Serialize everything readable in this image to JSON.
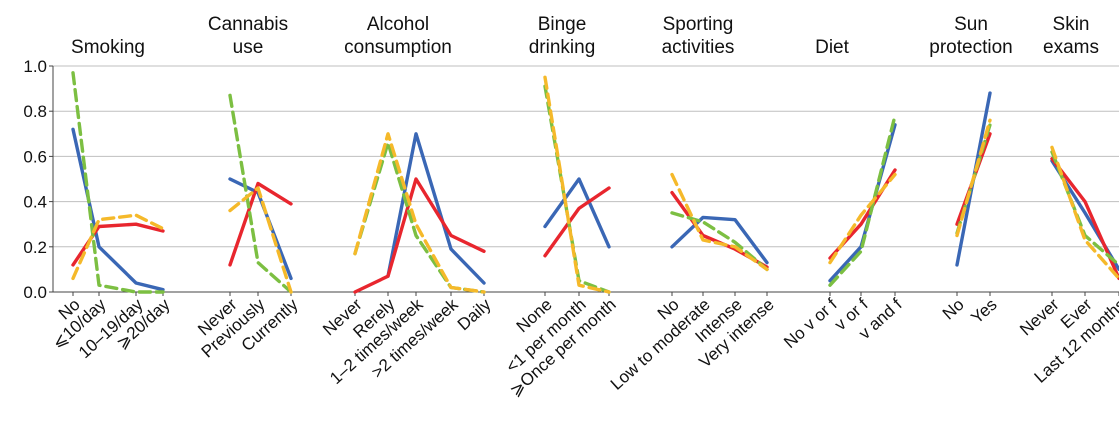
{
  "chart_data": {
    "type": "line",
    "ylim": [
      0,
      1
    ],
    "yticks": [
      "0.0",
      "0.2",
      "0.4",
      "0.6",
      "0.8",
      "1.0"
    ],
    "grid": "horizontal",
    "series_styles": [
      {
        "color": "#3a67b5",
        "dash": "solid"
      },
      {
        "color": "#e8262e",
        "dash": "solid"
      },
      {
        "color": "#7cbf42",
        "dash": "dashed"
      },
      {
        "color": "#f5b92a",
        "dash": "dashed"
      }
    ],
    "panels": [
      {
        "title": [
          "Smoking"
        ],
        "categories": [
          "No",
          "⩽10/day",
          "10–19/day",
          "⩾20/day"
        ],
        "series": [
          {
            "values": [
              0.72,
              0.2,
              0.04,
              0.01
            ]
          },
          {
            "values": [
              0.12,
              0.29,
              0.3,
              0.27
            ]
          },
          {
            "values": [
              0.97,
              0.03,
              0.0,
              0.0
            ]
          },
          {
            "values": [
              0.06,
              0.32,
              0.34,
              0.28
            ]
          }
        ]
      },
      {
        "title": [
          "Cannabis",
          "use"
        ],
        "categories": [
          "Never",
          "Previously",
          "Currently"
        ],
        "series": [
          {
            "values": [
              0.5,
              0.44,
              0.06
            ]
          },
          {
            "values": [
              0.12,
              0.48,
              0.39
            ]
          },
          {
            "values": [
              0.87,
              0.13,
              0.0
            ]
          },
          {
            "values": [
              0.36,
              0.46,
              0.0
            ]
          }
        ]
      },
      {
        "title": [
          "Alcohol",
          "consumption"
        ],
        "categories": [
          "Never",
          "Rerely",
          "1–2 times/week",
          ">2 times/week",
          "Daily"
        ],
        "series": [
          {
            "values": [
              null,
              0.07,
              0.7,
              0.19,
              0.04
            ]
          },
          {
            "values": [
              0.0,
              0.07,
              0.5,
              0.25,
              0.18
            ]
          },
          {
            "values": [
              0.17,
              0.66,
              0.25,
              0.02,
              0.0
            ]
          },
          {
            "values": [
              0.17,
              0.7,
              0.3,
              0.02,
              0.0
            ]
          }
        ]
      },
      {
        "title": [
          "Binge",
          "drinking"
        ],
        "categories": [
          "None",
          "<1 per month",
          "⩾Once per month"
        ],
        "series": [
          {
            "values": [
              0.29,
              0.5,
              0.2
            ]
          },
          {
            "values": [
              0.16,
              0.37,
              0.46
            ]
          },
          {
            "values": [
              0.91,
              0.05,
              0.0
            ]
          },
          {
            "values": [
              0.95,
              0.03,
              0.0
            ]
          }
        ]
      },
      {
        "title": [
          "Sporting",
          "activities"
        ],
        "categories": [
          "No",
          "Low to moderate",
          "Intense",
          "Very intense"
        ],
        "series": [
          {
            "values": [
              0.2,
              0.33,
              0.32,
              0.13
            ]
          },
          {
            "values": [
              0.44,
              0.25,
              0.19,
              0.11
            ]
          },
          {
            "values": [
              0.35,
              0.31,
              0.22,
              0.1
            ]
          },
          {
            "values": [
              0.52,
              0.23,
              0.2,
              0.1
            ]
          }
        ]
      },
      {
        "title": [
          "Diet"
        ],
        "categories": [
          "No v or f",
          "v or f",
          "v and f"
        ],
        "series": [
          {
            "values": [
              0.05,
              0.2,
              0.74
            ]
          },
          {
            "values": [
              0.15,
              0.3,
              0.54
            ]
          },
          {
            "values": [
              0.03,
              0.18,
              0.78
            ]
          },
          {
            "values": [
              0.13,
              0.34,
              0.52
            ]
          }
        ]
      },
      {
        "title": [
          "Sun",
          "protection"
        ],
        "categories": [
          "No",
          "Yes"
        ],
        "series": [
          {
            "values": [
              0.12,
              0.88
            ]
          },
          {
            "values": [
              0.3,
              0.7
            ]
          },
          {
            "values": [
              0.26,
              0.74
            ]
          },
          {
            "values": [
              0.25,
              0.76
            ]
          }
        ]
      },
      {
        "title": [
          "Skin",
          "exams"
        ],
        "categories": [
          "Never",
          "Ever",
          "Last 12 months"
        ],
        "series": [
          {
            "values": [
              0.58,
              0.35,
              0.1
            ]
          },
          {
            "values": [
              0.59,
              0.4,
              0.06
            ]
          },
          {
            "values": [
              0.62,
              0.25,
              0.12
            ]
          },
          {
            "values": [
              0.64,
              0.23,
              0.06
            ]
          }
        ]
      }
    ]
  }
}
